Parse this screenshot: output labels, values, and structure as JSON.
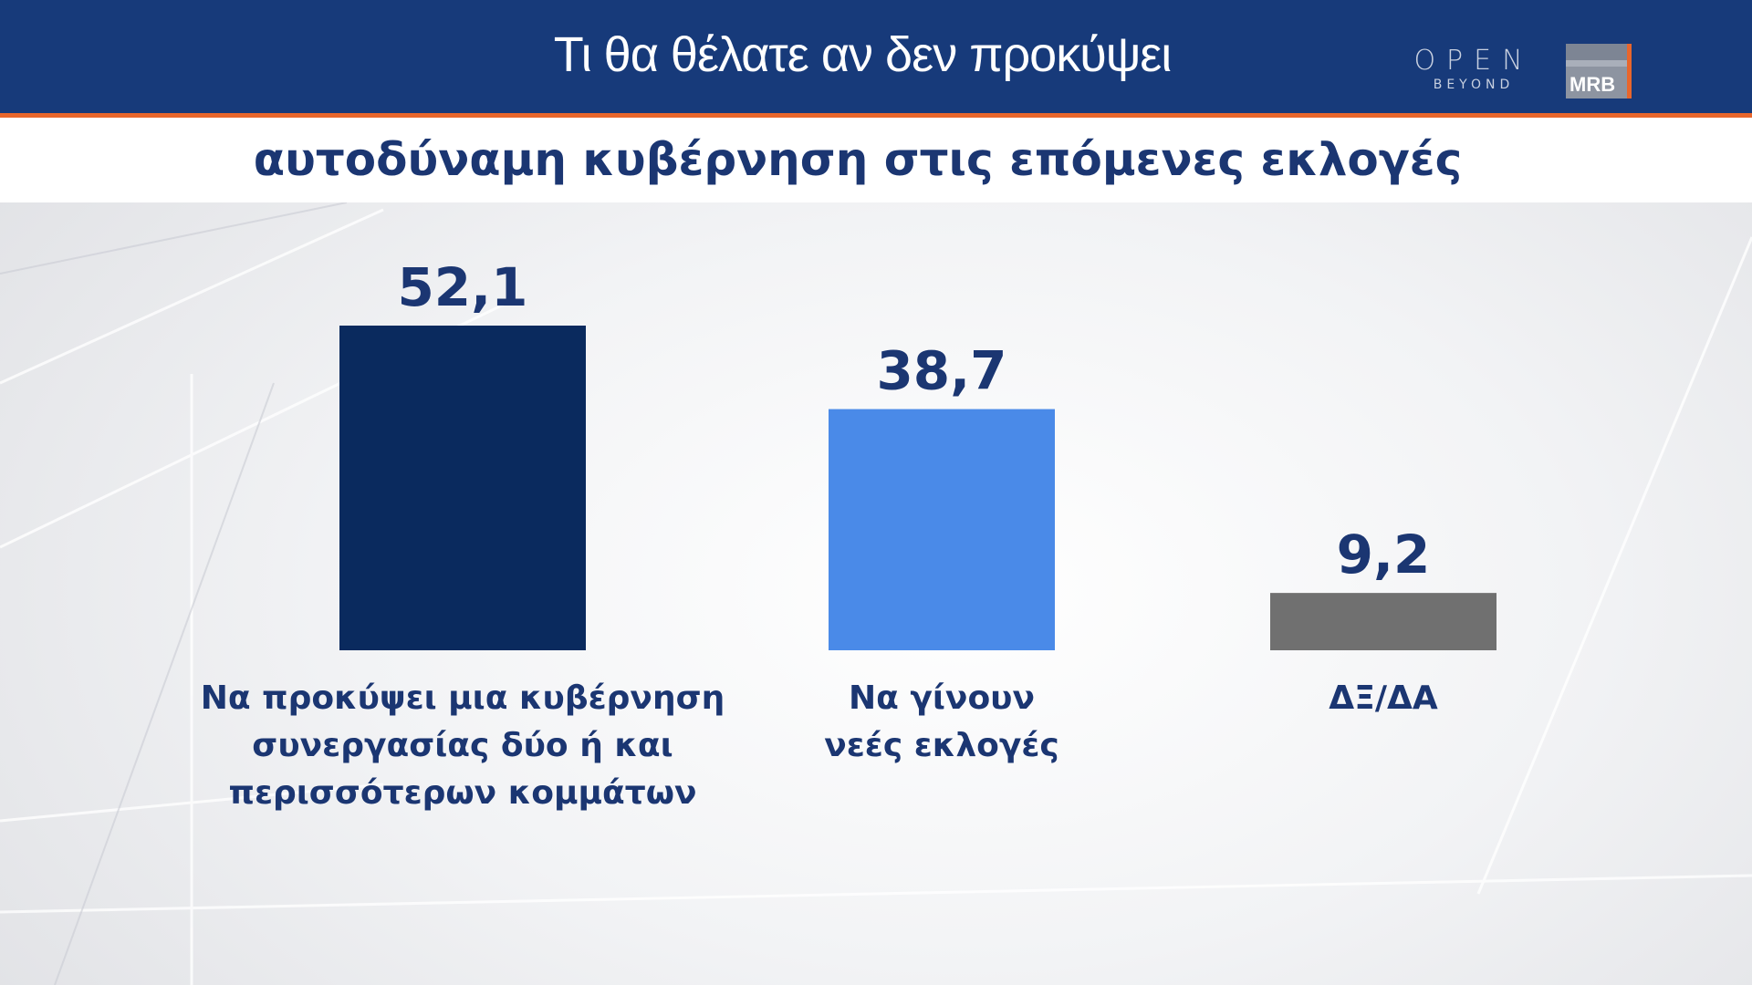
{
  "header": {
    "title": "Τι θα θέλατε αν δεν προκύψει",
    "subtitle": "αυτοδύναμη κυβέρνηση στις επόμενες  εκλογές",
    "logo_open_text": "OPEN",
    "logo_open_sub": "BEYOND",
    "logo_mrb_text": "MRB"
  },
  "colors": {
    "header_bg": "#173a7a",
    "accent": "#e8662c",
    "text": "#1b3672"
  },
  "chart_data": {
    "type": "bar",
    "title": "Τι θα θέλατε αν δεν προκύψει αυτοδύναμη κυβέρνηση στις επόμενες  εκλογές",
    "categories": [
      [
        "Να προκύψει μια κυβέρνηση",
        "συνεργασίας δύο ή και",
        "περισσότερων κομμάτων"
      ],
      [
        "Να γίνουν",
        "νεές εκλογές"
      ],
      [
        "ΔΞ/ΔΑ"
      ]
    ],
    "values": [
      52.1,
      38.7,
      9.2
    ],
    "value_labels": [
      "52,1",
      "38,7",
      "9,2"
    ],
    "bar_colors": [
      "#0a2a5e",
      "#4a8ae8",
      "#707070"
    ],
    "xlabel": "",
    "ylabel": "",
    "ylim": [
      0,
      60
    ],
    "grid": false,
    "legend": "none"
  }
}
